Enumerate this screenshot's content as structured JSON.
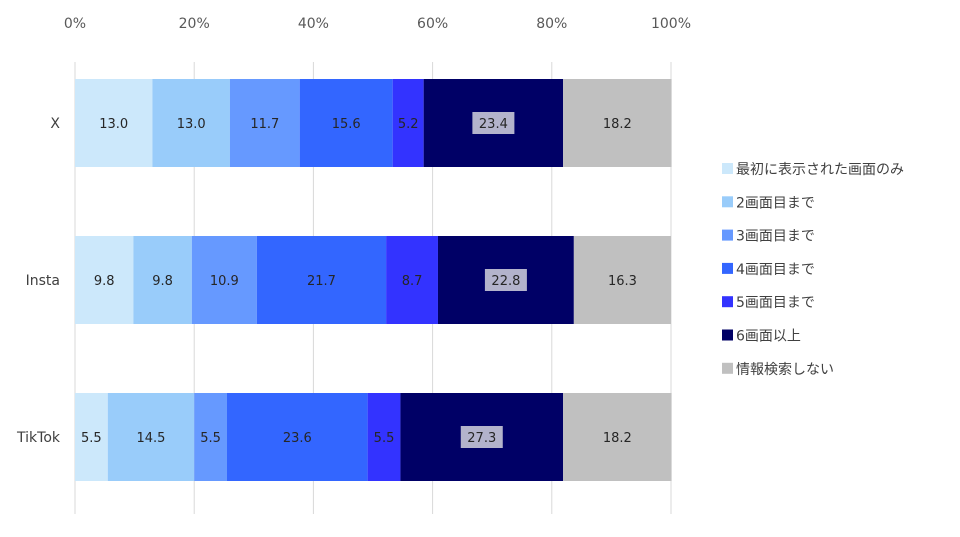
{
  "chart_data": {
    "type": "bar",
    "orientation": "horizontal",
    "stacked": "percent",
    "categories": [
      "X",
      "Insta",
      "TikTok"
    ],
    "x_ticks": [
      "0%",
      "20%",
      "40%",
      "60%",
      "80%",
      "100%"
    ],
    "xlim": [
      0,
      100
    ],
    "grid": "vertical",
    "legend_position": "right",
    "series": [
      {
        "name": "最初に表示された画面のみ",
        "color": "#cce8fb",
        "values": [
          13.0,
          9.8,
          5.5
        ],
        "labels": [
          "13.0",
          "9.8",
          "5.5"
        ]
      },
      {
        "name": "2画面目まで",
        "color": "#99ccfa",
        "values": [
          13.0,
          9.8,
          14.5
        ],
        "labels": [
          "13.0",
          "9.8",
          "14.5"
        ]
      },
      {
        "name": "3画面目まで",
        "color": "#6699ff",
        "values": [
          11.7,
          10.9,
          5.5
        ],
        "labels": [
          "11.7",
          "10.9",
          "5.5"
        ]
      },
      {
        "name": "4画面目まで",
        "color": "#3366ff",
        "values": [
          15.6,
          21.7,
          23.6
        ],
        "labels": [
          "15.6",
          "21.7",
          "23.6"
        ]
      },
      {
        "name": "5画面目まで",
        "color": "#3333ff",
        "values": [
          5.2,
          8.7,
          5.5
        ],
        "labels": [
          "5.2",
          "8.7",
          "5.5"
        ]
      },
      {
        "name": "6画面以上",
        "color": "#000066",
        "values": [
          23.4,
          22.8,
          27.3
        ],
        "labels": [
          "23.4",
          "22.8",
          "27.3"
        ],
        "label_box": "#b3b3cc"
      },
      {
        "name": "情報検索しない",
        "color": "#c0c0c0",
        "values": [
          18.2,
          16.3,
          18.2
        ],
        "labels": [
          "18.2",
          "16.3",
          "18.2"
        ]
      }
    ]
  }
}
